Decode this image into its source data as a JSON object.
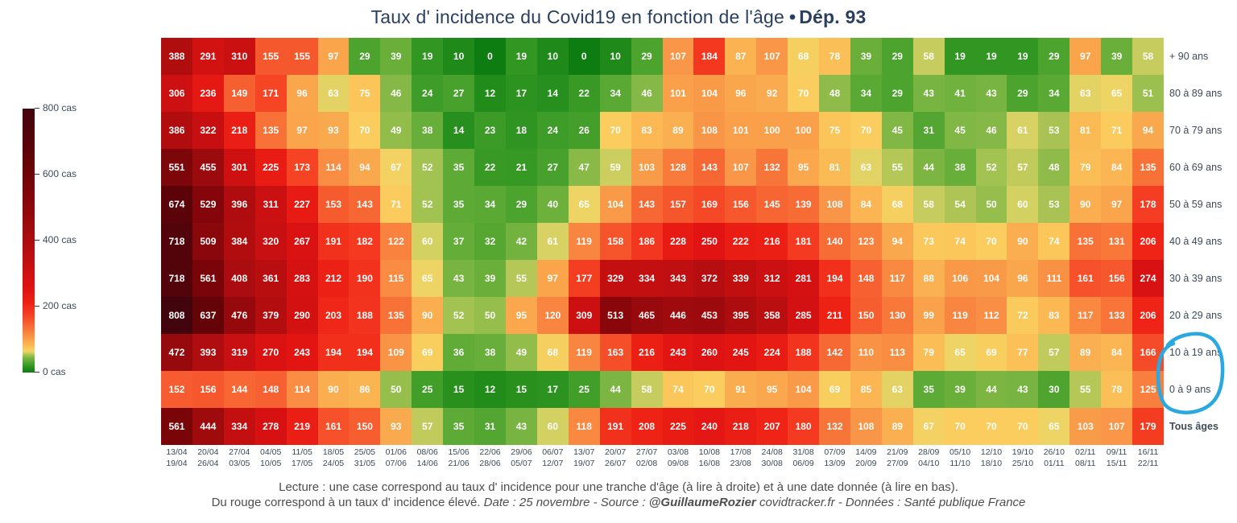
{
  "title": {
    "main": "Taux d' incidence du Covid19 en fonction de l'âge",
    "separator": "•",
    "highlight": "Dép. 93"
  },
  "colors": {
    "title_text": "#2a3f5f",
    "axis_text": "#3d4a57",
    "cell_text": "#ffffff",
    "annotation_blue": "#2aa9e1",
    "footer_text": "#4d4d4d"
  },
  "chart_data": {
    "type": "heatmap",
    "title": "Taux d' incidence du Covid19 en fonction de l'âge • Dép. 93",
    "value_unit": "cas",
    "zlim": [
      0,
      800
    ],
    "legend_position": "left",
    "grid": false,
    "x_week_ranges": [
      [
        "13/04",
        "19/04"
      ],
      [
        "20/04",
        "26/04"
      ],
      [
        "27/04",
        "03/05"
      ],
      [
        "04/05",
        "10/05"
      ],
      [
        "11/05",
        "17/05"
      ],
      [
        "18/05",
        "24/05"
      ],
      [
        "25/05",
        "31/05"
      ],
      [
        "01/06",
        "07/06"
      ],
      [
        "08/06",
        "14/06"
      ],
      [
        "15/06",
        "21/06"
      ],
      [
        "22/06",
        "28/06"
      ],
      [
        "29/06",
        "05/07"
      ],
      [
        "06/07",
        "12/07"
      ],
      [
        "13/07",
        "19/07"
      ],
      [
        "20/07",
        "26/07"
      ],
      [
        "27/07",
        "02/08"
      ],
      [
        "03/08",
        "09/08"
      ],
      [
        "10/08",
        "16/08"
      ],
      [
        "17/08",
        "23/08"
      ],
      [
        "24/08",
        "30/08"
      ],
      [
        "31/08",
        "06/09"
      ],
      [
        "07/09",
        "13/09"
      ],
      [
        "14/09",
        "20/09"
      ],
      [
        "21/09",
        "27/09"
      ],
      [
        "28/09",
        "04/10"
      ],
      [
        "05/10",
        "11/10"
      ],
      [
        "12/10",
        "18/10"
      ],
      [
        "19/10",
        "25/10"
      ],
      [
        "26/10",
        "01/11"
      ],
      [
        "02/11",
        "08/11"
      ],
      [
        "09/11",
        "15/11"
      ],
      [
        "16/11",
        "22/11"
      ]
    ],
    "age_groups": [
      {
        "label": "+ 90 ans",
        "bold": false
      },
      {
        "label": "80 à 89 ans",
        "bold": false
      },
      {
        "label": "70 à 79 ans",
        "bold": false
      },
      {
        "label": "60 à 69 ans",
        "bold": false
      },
      {
        "label": "50 à 59 ans",
        "bold": false
      },
      {
        "label": "40 à 49 ans",
        "bold": false
      },
      {
        "label": "30 à 39 ans",
        "bold": false
      },
      {
        "label": "20 à 29 ans",
        "bold": false
      },
      {
        "label": "10 à 19 ans",
        "bold": false
      },
      {
        "label": "0 à 9 ans",
        "bold": false
      },
      {
        "label": "Tous âges",
        "bold": true
      }
    ],
    "rows": [
      [
        388,
        291,
        310,
        155,
        155,
        97,
        29,
        39,
        19,
        10,
        0,
        19,
        10,
        0,
        10,
        29,
        107,
        184,
        87,
        107,
        68,
        78,
        39,
        29,
        58,
        19,
        19,
        19,
        29,
        97,
        39,
        58
      ],
      [
        306,
        236,
        149,
        171,
        96,
        63,
        75,
        46,
        24,
        27,
        12,
        17,
        14,
        22,
        34,
        46,
        101,
        104,
        96,
        92,
        70,
        48,
        34,
        29,
        43,
        41,
        43,
        29,
        34,
        63,
        65,
        51
      ],
      [
        386,
        322,
        218,
        135,
        97,
        93,
        70,
        49,
        38,
        14,
        23,
        18,
        24,
        26,
        70,
        83,
        89,
        108,
        101,
        100,
        100,
        75,
        70,
        45,
        31,
        45,
        46,
        61,
        53,
        81,
        71,
        94
      ],
      [
        551,
        455,
        301,
        225,
        173,
        114,
        94,
        67,
        52,
        35,
        22,
        21,
        27,
        47,
        59,
        103,
        128,
        143,
        107,
        132,
        95,
        81,
        63,
        55,
        44,
        38,
        52,
        57,
        48,
        79,
        84,
        135
      ],
      [
        674,
        529,
        396,
        311,
        227,
        153,
        143,
        71,
        52,
        35,
        34,
        29,
        40,
        65,
        104,
        143,
        157,
        169,
        156,
        145,
        139,
        108,
        84,
        68,
        58,
        54,
        50,
        60,
        53,
        90,
        97,
        178
      ],
      [
        718,
        509,
        384,
        320,
        267,
        191,
        182,
        122,
        60,
        37,
        32,
        42,
        61,
        119,
        158,
        186,
        228,
        250,
        222,
        216,
        181,
        140,
        123,
        94,
        73,
        74,
        70,
        90,
        74,
        135,
        131,
        206
      ],
      [
        718,
        561,
        408,
        361,
        283,
        212,
        190,
        115,
        65,
        43,
        39,
        55,
        97,
        177,
        329,
        334,
        343,
        372,
        339,
        312,
        281,
        194,
        148,
        117,
        88,
        106,
        104,
        96,
        111,
        161,
        156,
        274
      ],
      [
        808,
        637,
        476,
        379,
        290,
        203,
        188,
        135,
        90,
        52,
        50,
        95,
        120,
        309,
        513,
        465,
        446,
        453,
        395,
        358,
        285,
        211,
        150,
        130,
        99,
        119,
        112,
        72,
        83,
        117,
        133,
        206
      ],
      [
        472,
        393,
        319,
        270,
        243,
        194,
        194,
        109,
        69,
        36,
        38,
        49,
        68,
        119,
        163,
        216,
        243,
        260,
        245,
        224,
        188,
        142,
        110,
        113,
        79,
        65,
        69,
        77,
        57,
        89,
        84,
        166
      ],
      [
        152,
        156,
        144,
        148,
        114,
        90,
        86,
        50,
        25,
        15,
        12,
        15,
        17,
        25,
        44,
        58,
        74,
        70,
        91,
        95,
        104,
        69,
        85,
        63,
        35,
        39,
        44,
        43,
        30,
        55,
        78,
        125
      ],
      [
        561,
        444,
        334,
        278,
        219,
        161,
        150,
        93,
        57,
        35,
        31,
        43,
        60,
        118,
        191,
        208,
        225,
        240,
        218,
        207,
        180,
        132,
        108,
        89,
        67,
        70,
        70,
        70,
        65,
        103,
        107,
        179
      ]
    ],
    "colorbar_ticks": [
      {
        "label": "800 cas",
        "value": 800
      },
      {
        "label": "600 cas",
        "value": 600
      },
      {
        "label": "400 cas",
        "value": 400
      },
      {
        "label": "200 cas",
        "value": 200
      },
      {
        "label": "0 cas",
        "value": 0
      }
    ],
    "colorscale": [
      [
        0,
        "#0d7c11"
      ],
      [
        12,
        "#228c1b"
      ],
      [
        22,
        "#389a25"
      ],
      [
        32,
        "#55a732"
      ],
      [
        42,
        "#74b23f"
      ],
      [
        50,
        "#96be4d"
      ],
      [
        55,
        "#b4c757"
      ],
      [
        60,
        "#d2d162"
      ],
      [
        65,
        "#edd465"
      ],
      [
        70,
        "#fbcd5e"
      ],
      [
        80,
        "#fbbc55"
      ],
      [
        95,
        "#faa74d"
      ],
      [
        110,
        "#f99245"
      ],
      [
        130,
        "#f8783a"
      ],
      [
        155,
        "#f6582d"
      ],
      [
        180,
        "#f43b21"
      ],
      [
        210,
        "#ee2115"
      ],
      [
        250,
        "#e11313"
      ],
      [
        300,
        "#cf1011"
      ],
      [
        360,
        "#b90e10"
      ],
      [
        430,
        "#a30b0e"
      ],
      [
        510,
        "#8a070b"
      ],
      [
        600,
        "#6e0408"
      ],
      [
        700,
        "#560309"
      ],
      [
        810,
        "#43050d"
      ]
    ]
  },
  "annotation": {
    "description": "hand-drawn blue circle around the labels 10 à 19 ans and 0 à 9 ans",
    "color": "#2aa9e1"
  },
  "footer": {
    "line1": "Lecture : une case correspond au taux d' incidence pour une tranche d'âge (à lire à droite) et à une date donnée (à lire en bas).",
    "line2_text": "Du rouge correspond à un taux d' incidence élevé.",
    "line2_date_source": "Date : 25 novembre - Source :",
    "line2_author": "@GuillaumeRozier",
    "line2_site_source": "covidtracker.fr - Données : Santé publique France"
  }
}
